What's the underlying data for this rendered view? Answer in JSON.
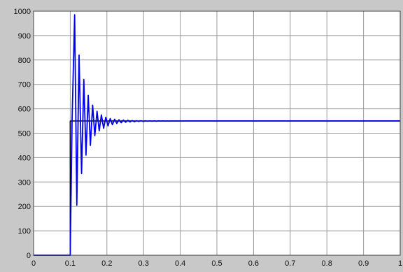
{
  "window": {
    "background": "#c8c8c8",
    "axes_background": "#ffffff",
    "grid_color": "#9a9a9a"
  },
  "chart_data": {
    "type": "line",
    "title": "",
    "xlabel": "",
    "ylabel": "",
    "xlim": [
      0,
      1
    ],
    "ylim": [
      0,
      1000
    ],
    "grid": true,
    "xticks": [
      "0",
      "0.1",
      "0.2",
      "0.3",
      "0.4",
      "0.5",
      "0.6",
      "0.7",
      "0.8",
      "0.9",
      "1"
    ],
    "yticks": [
      "0",
      "100",
      "200",
      "300",
      "400",
      "500",
      "600",
      "700",
      "800",
      "900",
      "1000"
    ],
    "series": [
      {
        "role": "reference step",
        "color": "#000000",
        "x": [
          0,
          0.1,
          0.1,
          1
        ],
        "y": [
          0,
          0,
          550,
          550
        ]
      },
      {
        "role": "oscillating response",
        "color": "#0000ee",
        "x": [
          0,
          0.1,
          0.105,
          0.112,
          0.118,
          0.124,
          0.131,
          0.137,
          0.143,
          0.149,
          0.155,
          0.161,
          0.167,
          0.173,
          0.179,
          0.185,
          0.191,
          0.197,
          0.203,
          0.209,
          0.215,
          0.221,
          0.227,
          0.233,
          0.239,
          0.245,
          0.251,
          0.257,
          0.263,
          0.269,
          0.275,
          0.281,
          0.287,
          0.293,
          0.299,
          0.305,
          0.311,
          0.317,
          0.323,
          0.329,
          0.335,
          0.341,
          0.347,
          0.353,
          0.359,
          0.365,
          0.371,
          0.377,
          0.383,
          0.389,
          0.395,
          0.401,
          0.41,
          0.42,
          0.45,
          0.5,
          0.6,
          0.7,
          0.8,
          0.9,
          1.0
        ],
        "y": [
          0,
          0,
          550,
          985,
          205,
          820,
          335,
          720,
          410,
          655,
          450,
          615,
          490,
          590,
          510,
          575,
          520,
          565,
          530,
          560,
          535,
          557,
          540,
          555,
          543,
          554,
          545,
          553,
          546,
          552,
          547,
          551,
          548,
          551,
          548,
          550.5,
          549,
          550.5,
          549,
          550.5,
          549,
          550.5,
          549.5,
          550.3,
          549.6,
          550.2,
          549.7,
          550.2,
          549.8,
          550.1,
          549.9,
          550,
          550,
          550,
          550,
          550,
          550,
          550,
          550,
          550,
          550
        ]
      }
    ]
  }
}
